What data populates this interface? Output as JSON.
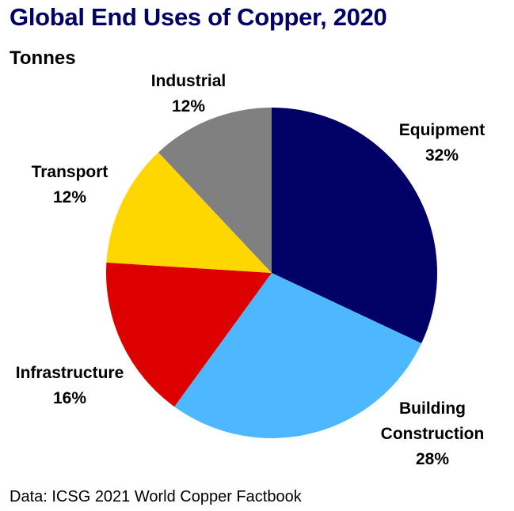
{
  "title": "Global End Uses of Copper, 2020",
  "subtitle": "Tonnes",
  "source": "Data: ICSG 2021 World Copper Factbook",
  "chart_data": {
    "type": "pie",
    "title": "Global End Uses of Copper, 2020",
    "subtitle": "Tonnes",
    "start_angle_deg": 0,
    "direction": "clockwise",
    "slices": [
      {
        "label": [
          "Equipment"
        ],
        "pct_label": "32%",
        "value": 32,
        "color": "#000066"
      },
      {
        "label": [
          "Building",
          "Construction"
        ],
        "pct_label": "28%",
        "value": 28,
        "color": "#4DB8FF"
      },
      {
        "label": [
          "Infrastructure"
        ],
        "pct_label": "16%",
        "value": 16,
        "color": "#DD0000"
      },
      {
        "label": [
          "Transport"
        ],
        "pct_label": "12%",
        "value": 12,
        "color": "#FFD700"
      },
      {
        "label": [
          "Industrial"
        ],
        "pct_label": "12%",
        "value": 12,
        "color": "#808080"
      }
    ]
  }
}
